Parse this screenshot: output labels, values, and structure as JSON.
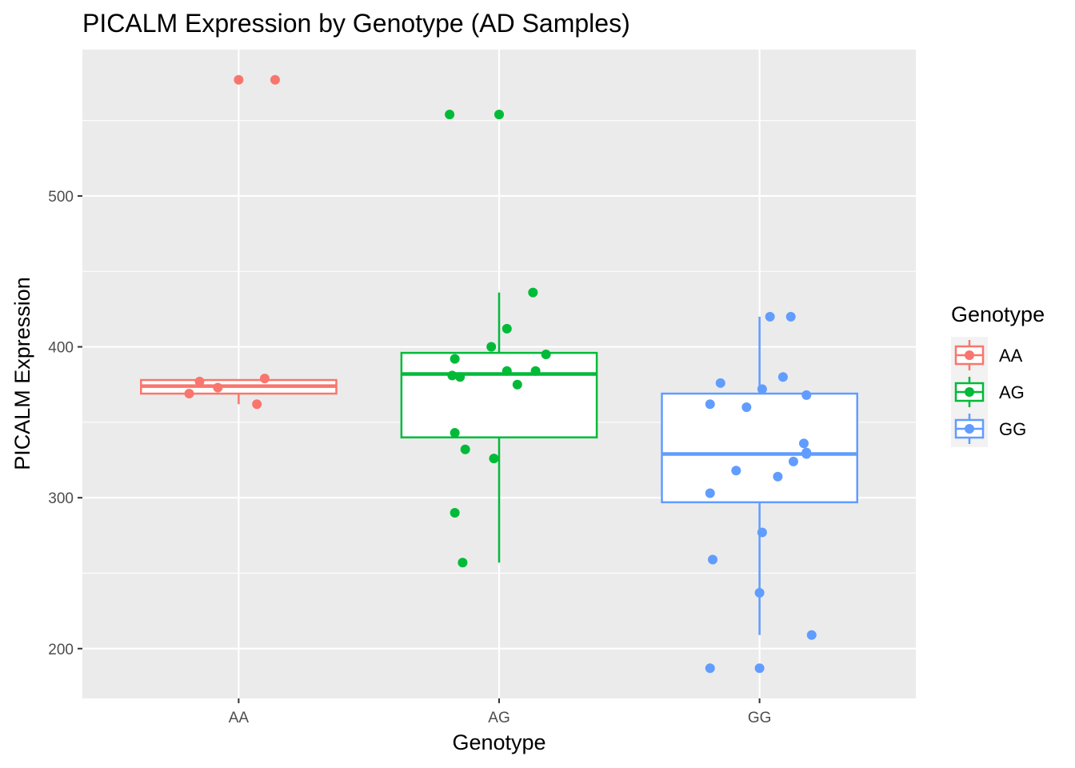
{
  "chart_data": {
    "type": "boxplot",
    "title": "PICALM Expression by Genotype (AD Samples)",
    "xlabel": "Genotype",
    "ylabel": "PICALM Expression",
    "categories": [
      "AA",
      "AG",
      "GG"
    ],
    "yticks": [
      200,
      300,
      400,
      500
    ],
    "ylim": [
      167,
      597
    ],
    "grid": true,
    "legend": {
      "title": "Genotype",
      "position": "right",
      "entries": [
        "AA",
        "AG",
        "GG"
      ]
    },
    "colors": {
      "AA": "#F8766D",
      "AG": "#00BA38",
      "GG": "#619CFF"
    },
    "boxes": [
      {
        "name": "AA",
        "whisker_low": 362,
        "q1": 369,
        "median": 374,
        "q3": 378,
        "whisker_high": 378
      },
      {
        "name": "AG",
        "whisker_low": 257,
        "q1": 340,
        "median": 382,
        "q3": 396,
        "whisker_high": 436
      },
      {
        "name": "GG",
        "whisker_low": 209,
        "q1": 297,
        "median": 329,
        "q3": 369,
        "whisker_high": 420
      }
    ],
    "points": [
      {
        "group": "AA",
        "x": -0.19,
        "y": 369
      },
      {
        "group": "AA",
        "x": -0.15,
        "y": 377
      },
      {
        "group": "AA",
        "x": -0.08,
        "y": 373
      },
      {
        "group": "AA",
        "x": 0.1,
        "y": 379
      },
      {
        "group": "AA",
        "x": 0.07,
        "y": 362
      },
      {
        "group": "AA",
        "x": 0.0,
        "y": 577
      },
      {
        "group": "AA",
        "x": 0.14,
        "y": 577
      },
      {
        "group": "AG",
        "x": -0.19,
        "y": 554
      },
      {
        "group": "AG",
        "x": 0.0,
        "y": 554
      },
      {
        "group": "AG",
        "x": 0.13,
        "y": 436
      },
      {
        "group": "AG",
        "x": 0.03,
        "y": 412
      },
      {
        "group": "AG",
        "x": -0.03,
        "y": 400
      },
      {
        "group": "AG",
        "x": 0.18,
        "y": 395
      },
      {
        "group": "AG",
        "x": -0.17,
        "y": 392
      },
      {
        "group": "AG",
        "x": 0.03,
        "y": 384
      },
      {
        "group": "AG",
        "x": 0.14,
        "y": 384
      },
      {
        "group": "AG",
        "x": -0.18,
        "y": 381
      },
      {
        "group": "AG",
        "x": -0.15,
        "y": 380
      },
      {
        "group": "AG",
        "x": 0.07,
        "y": 375
      },
      {
        "group": "AG",
        "x": -0.17,
        "y": 343
      },
      {
        "group": "AG",
        "x": -0.13,
        "y": 332
      },
      {
        "group": "AG",
        "x": -0.02,
        "y": 326
      },
      {
        "group": "AG",
        "x": -0.17,
        "y": 290
      },
      {
        "group": "AG",
        "x": -0.14,
        "y": 257
      },
      {
        "group": "GG",
        "x": 0.04,
        "y": 420
      },
      {
        "group": "GG",
        "x": 0.12,
        "y": 420
      },
      {
        "group": "GG",
        "x": 0.09,
        "y": 380
      },
      {
        "group": "GG",
        "x": -0.15,
        "y": 376
      },
      {
        "group": "GG",
        "x": 0.01,
        "y": 372
      },
      {
        "group": "GG",
        "x": 0.18,
        "y": 368
      },
      {
        "group": "GG",
        "x": -0.19,
        "y": 362
      },
      {
        "group": "GG",
        "x": -0.05,
        "y": 360
      },
      {
        "group": "GG",
        "x": 0.17,
        "y": 336
      },
      {
        "group": "GG",
        "x": 0.18,
        "y": 330
      },
      {
        "group": "GG",
        "x": 0.18,
        "y": 329
      },
      {
        "group": "GG",
        "x": 0.13,
        "y": 324
      },
      {
        "group": "GG",
        "x": -0.09,
        "y": 318
      },
      {
        "group": "GG",
        "x": 0.07,
        "y": 314
      },
      {
        "group": "GG",
        "x": -0.19,
        "y": 303
      },
      {
        "group": "GG",
        "x": 0.01,
        "y": 277
      },
      {
        "group": "GG",
        "x": -0.18,
        "y": 259
      },
      {
        "group": "GG",
        "x": 0.0,
        "y": 237
      },
      {
        "group": "GG",
        "x": 0.2,
        "y": 209
      },
      {
        "group": "GG",
        "x": -0.19,
        "y": 187
      },
      {
        "group": "GG",
        "x": 0.0,
        "y": 187
      }
    ]
  }
}
